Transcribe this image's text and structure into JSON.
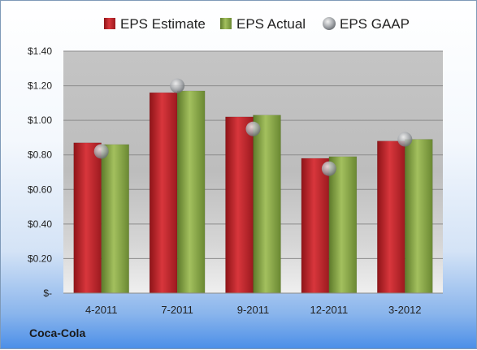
{
  "company": "Coca-Cola",
  "chart_data": {
    "type": "bar",
    "categories": [
      "4-2011",
      "7-2011",
      "9-2011",
      "12-2011",
      "3-2012"
    ],
    "series": [
      {
        "name": "EPS Estimate",
        "kind": "bar",
        "color": "#c0282e",
        "values": [
          0.87,
          1.16,
          1.02,
          0.78,
          0.88
        ]
      },
      {
        "name": "EPS Actual",
        "kind": "bar",
        "color": "#8caa4a",
        "values": [
          0.86,
          1.17,
          1.03,
          0.79,
          0.89
        ]
      },
      {
        "name": "EPS GAAP",
        "kind": "marker",
        "color": "#a0a4a8",
        "values": [
          0.82,
          1.2,
          0.95,
          0.72,
          0.89
        ]
      }
    ],
    "ylim": [
      0,
      1.4
    ],
    "yticks": [
      0,
      0.2,
      0.4,
      0.6,
      0.8,
      1.0,
      1.2,
      1.4
    ],
    "ytick_labels": [
      "$-",
      "$0.20",
      "$0.40",
      "$0.60",
      "$0.80",
      "$1.00",
      "$1.20",
      "$1.40"
    ],
    "legend_position": "top",
    "grid": true
  }
}
